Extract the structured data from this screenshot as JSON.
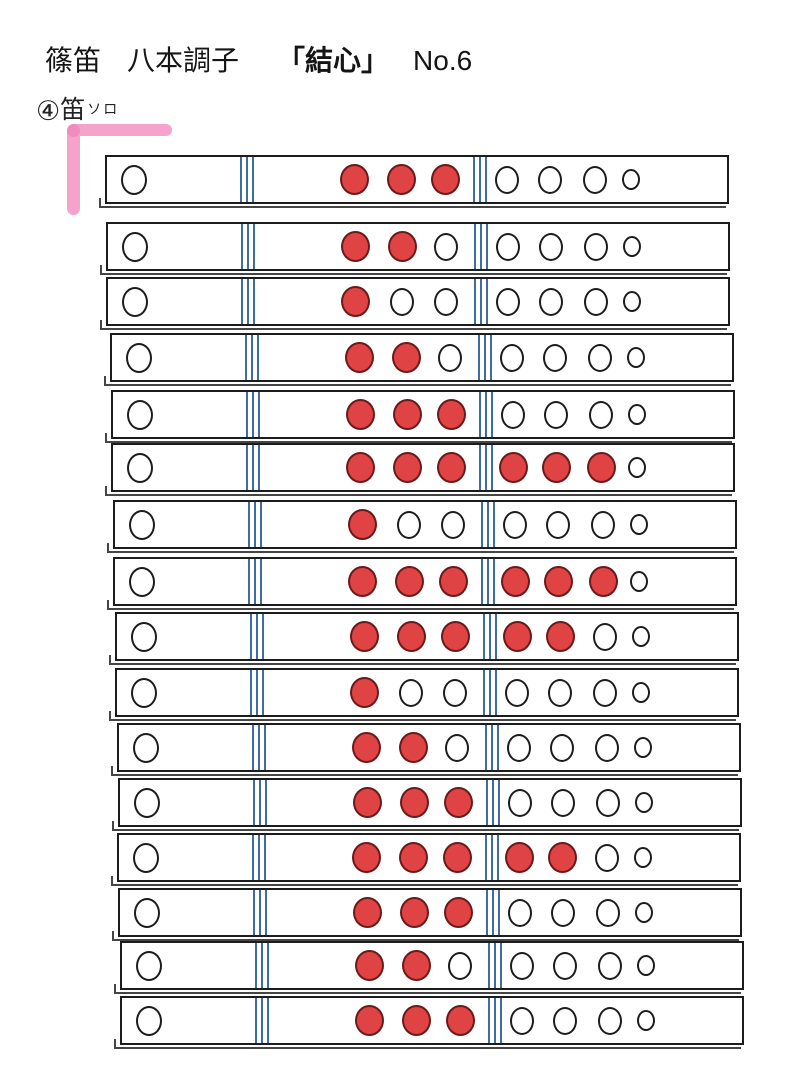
{
  "header": {
    "title": {
      "instrument": "篠笛",
      "key": "八本調子",
      "piece": "「結心」",
      "number": "No.6"
    },
    "annotation": {
      "circled_number": "④",
      "text": "笛",
      "small_text": "ソロ"
    }
  },
  "colors": {
    "closed_hole_fill": "#e04343",
    "closed_hole_border": "#6b1a1a",
    "outline_black": "#1c1c1c",
    "divider_blue": "#3e6ca3",
    "highlight_pink": "#f6a3cc"
  },
  "chart": {
    "type": "shinobue-fingering-chart",
    "hole_state_legend": {
      "1": "closed (red filled)",
      "0": "open (white)"
    },
    "holes_per_flute": 7,
    "rows": [
      {
        "fingering": [
          1,
          1,
          1,
          0,
          0,
          0,
          0
        ]
      },
      {
        "fingering": [
          1,
          1,
          0,
          0,
          0,
          0,
          0
        ]
      },
      {
        "fingering": [
          1,
          0,
          0,
          0,
          0,
          0,
          0
        ]
      },
      {
        "fingering": [
          1,
          1,
          0,
          0,
          0,
          0,
          0
        ]
      },
      {
        "fingering": [
          1,
          1,
          1,
          0,
          0,
          0,
          0
        ]
      },
      {
        "fingering": [
          1,
          1,
          1,
          1,
          1,
          1,
          0
        ]
      },
      {
        "fingering": [
          1,
          0,
          0,
          0,
          0,
          0,
          0
        ]
      },
      {
        "fingering": [
          1,
          1,
          1,
          1,
          1,
          1,
          0
        ]
      },
      {
        "fingering": [
          1,
          1,
          1,
          1,
          1,
          0,
          0
        ]
      },
      {
        "fingering": [
          1,
          0,
          0,
          0,
          0,
          0,
          0
        ]
      },
      {
        "fingering": [
          1,
          1,
          0,
          0,
          0,
          0,
          0
        ]
      },
      {
        "fingering": [
          1,
          1,
          1,
          0,
          0,
          0,
          0
        ]
      },
      {
        "fingering": [
          1,
          1,
          1,
          1,
          1,
          0,
          0
        ]
      },
      {
        "fingering": [
          1,
          1,
          1,
          0,
          0,
          0,
          0
        ]
      },
      {
        "fingering": [
          1,
          1,
          0,
          0,
          0,
          0,
          0
        ]
      },
      {
        "fingering": [
          1,
          1,
          1,
          0,
          0,
          0,
          0
        ]
      }
    ]
  }
}
